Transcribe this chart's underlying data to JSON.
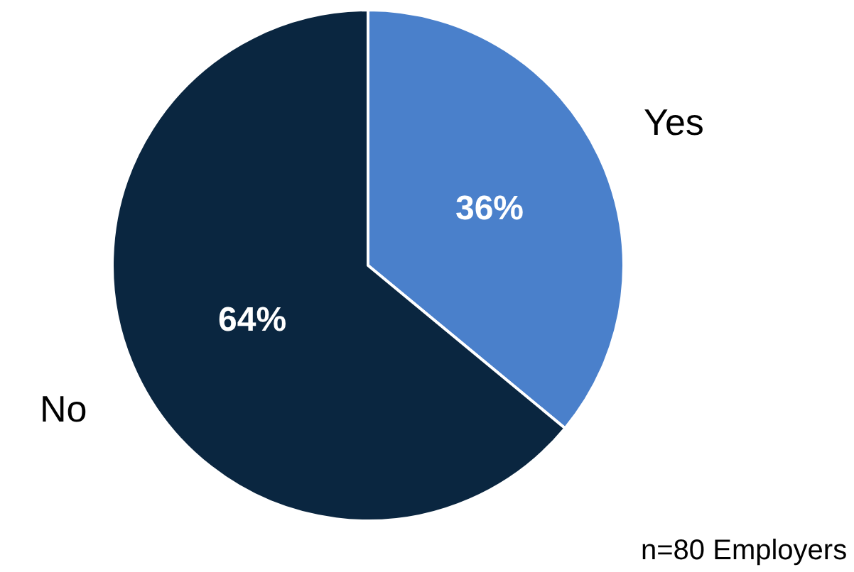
{
  "chart_data": {
    "type": "pie",
    "categories": [
      "Yes",
      "No"
    ],
    "values": [
      36,
      64
    ],
    "colors": [
      "#4a80cb",
      "#0a2640"
    ],
    "value_labels": [
      "36%",
      "64%"
    ],
    "annotations": [
      "n=80 Employers"
    ]
  }
}
